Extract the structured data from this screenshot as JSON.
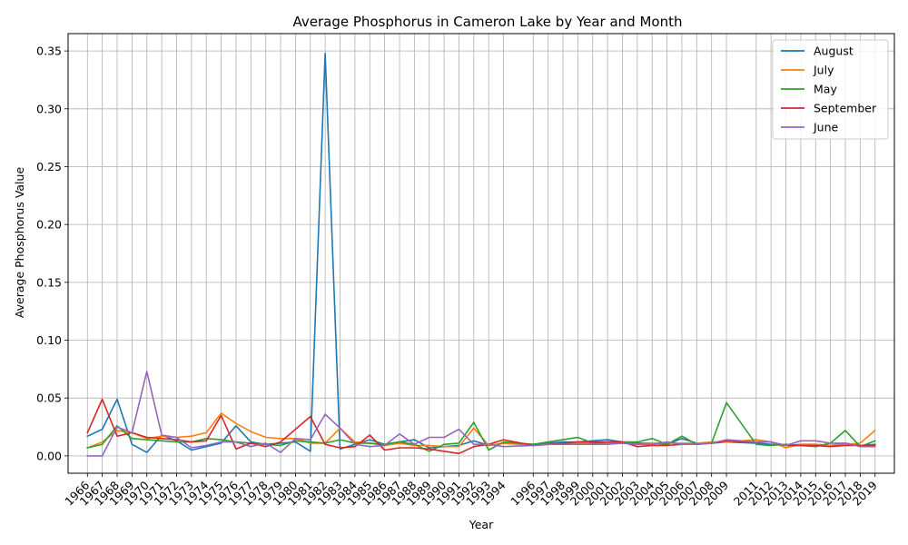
{
  "chart_data": {
    "type": "line",
    "title": "Average Phosphorus in Cameron Lake by Year and Month",
    "xlabel": "Year",
    "ylabel": "Average Phosphorus Value",
    "ylim": [
      -0.015,
      0.365
    ],
    "yticks": [
      0.0,
      0.05,
      0.1,
      0.15,
      0.2,
      0.25,
      0.3,
      0.35
    ],
    "ytick_labels": [
      "0.00",
      "0.05",
      "0.10",
      "0.15",
      "0.20",
      "0.25",
      "0.30",
      "0.35"
    ],
    "grid": true,
    "legend_position": "top-right",
    "x": [
      "1966",
      "1967",
      "1968",
      "1969",
      "1970",
      "1971",
      "1972",
      "1973",
      "1974",
      "1975",
      "1976",
      "1977",
      "1978",
      "1979",
      "1980",
      "1981",
      "1982",
      "1983",
      "1984",
      "1985",
      "1986",
      "1987",
      "1988",
      "1989",
      "1990",
      "1991",
      "1992",
      "1993",
      "1994",
      "1996",
      "1997",
      "1998",
      "1999",
      "2000",
      "2001",
      "2002",
      "2003",
      "2004",
      "2005",
      "2006",
      "2007",
      "2008",
      "2009",
      "2011",
      "2012",
      "2013",
      "2014",
      "2015",
      "2016",
      "2017",
      "2018",
      "2019"
    ],
    "series": [
      {
        "name": "August",
        "color": "#1f77b4",
        "values": [
          0.017,
          0.023,
          0.049,
          0.01,
          0.003,
          0.018,
          0.013,
          0.005,
          0.008,
          0.011,
          0.026,
          0.012,
          0.01,
          0.011,
          0.012,
          0.004,
          0.348,
          0.006,
          0.01,
          0.014,
          0.01,
          0.012,
          0.014,
          0.007,
          0.008,
          0.009,
          0.013,
          0.009,
          0.011,
          0.01,
          0.011,
          0.012,
          0.012,
          0.013,
          0.014,
          0.012,
          0.011,
          0.011,
          0.01,
          0.015,
          0.011,
          0.011,
          0.012,
          0.011,
          0.01,
          0.009,
          0.01,
          0.01,
          0.009,
          0.011,
          0.009,
          0.01
        ]
      },
      {
        "name": "July",
        "color": "#ff7f0e",
        "values": [
          0.007,
          0.012,
          0.022,
          0.02,
          0.015,
          0.017,
          0.016,
          0.017,
          0.02,
          0.037,
          0.028,
          0.021,
          0.016,
          0.015,
          0.015,
          0.011,
          0.011,
          0.024,
          0.012,
          0.011,
          0.009,
          0.011,
          0.009,
          0.009,
          0.008,
          0.008,
          0.024,
          0.009,
          0.011,
          0.009,
          0.01,
          0.011,
          0.011,
          0.011,
          0.011,
          0.011,
          0.01,
          0.011,
          0.011,
          0.011,
          0.011,
          0.012,
          0.012,
          0.014,
          0.012,
          0.007,
          0.01,
          0.01,
          0.009,
          0.01,
          0.011,
          0.022
        ]
      },
      {
        "name": "May",
        "color": "#2ca02c",
        "values": [
          0.007,
          0.01,
          0.026,
          0.015,
          0.014,
          0.013,
          0.012,
          0.012,
          0.015,
          0.014,
          0.012,
          0.011,
          0.01,
          0.009,
          0.013,
          0.012,
          0.011,
          0.014,
          0.011,
          0.011,
          0.01,
          0.012,
          0.01,
          0.004,
          0.01,
          0.011,
          0.029,
          0.005,
          0.012,
          0.01,
          0.012,
          0.014,
          0.016,
          0.011,
          0.012,
          0.012,
          0.012,
          0.015,
          0.01,
          0.017,
          0.01,
          0.011,
          0.046,
          0.01,
          0.009,
          0.01,
          0.009,
          0.008,
          0.011,
          0.022,
          0.008,
          0.013
        ]
      },
      {
        "name": "September",
        "color": "#d62728",
        "values": [
          0.02,
          0.049,
          0.017,
          0.02,
          0.016,
          0.015,
          0.014,
          0.012,
          0.013,
          0.035,
          0.006,
          0.011,
          0.008,
          0.012,
          0.023,
          0.034,
          0.01,
          0.007,
          0.008,
          0.018,
          0.005,
          0.007,
          0.007,
          0.006,
          0.004,
          0.002,
          0.008,
          0.01,
          0.014,
          0.009,
          0.01,
          0.011,
          0.012,
          0.012,
          0.012,
          0.012,
          0.008,
          0.009,
          0.009,
          0.01,
          0.01,
          0.011,
          0.013,
          0.012,
          0.012,
          0.009,
          0.009,
          0.009,
          0.008,
          0.009,
          0.009,
          0.009
        ]
      },
      {
        "name": "June",
        "color": "#9467bd",
        "values": [
          0.0,
          0.0,
          0.025,
          0.02,
          0.073,
          0.018,
          0.016,
          0.007,
          0.009,
          0.012,
          0.012,
          0.008,
          0.011,
          0.003,
          0.015,
          0.014,
          0.036,
          0.024,
          0.01,
          0.008,
          0.009,
          0.019,
          0.01,
          0.016,
          0.016,
          0.023,
          0.01,
          0.01,
          0.008,
          0.009,
          0.01,
          0.01,
          0.01,
          0.01,
          0.01,
          0.011,
          0.01,
          0.01,
          0.012,
          0.01,
          0.01,
          0.011,
          0.014,
          0.012,
          0.012,
          0.009,
          0.013,
          0.013,
          0.011,
          0.011,
          0.008,
          0.008
        ]
      }
    ]
  }
}
